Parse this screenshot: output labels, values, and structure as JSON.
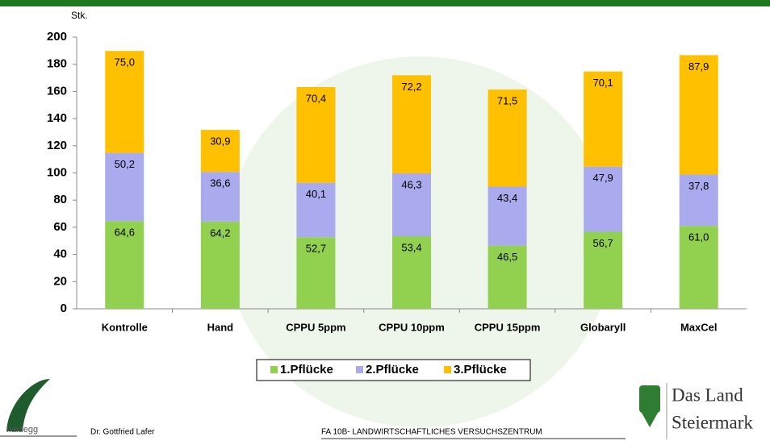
{
  "chart_data": {
    "type": "stacked_bar",
    "y_label": "Stk.",
    "categories": [
      "Kontrolle",
      "Hand",
      "CPPU 5ppm",
      "CPPU 10ppm",
      "CPPU 15ppm",
      "Globaryll",
      "MaxCel"
    ],
    "series": [
      {
        "name": "1.Pflücke",
        "color": "#92d050",
        "values": [
          64.6,
          64.2,
          52.7,
          53.4,
          46.5,
          56.7,
          61.0
        ],
        "value_labels": [
          "64,6",
          "64,2",
          "52,7",
          "53,4",
          "46,5",
          "56,7",
          "61,0"
        ]
      },
      {
        "name": "2.Pflücke",
        "color": "#aaaaee",
        "values": [
          50.2,
          36.6,
          40.1,
          46.3,
          43.4,
          47.9,
          37.8
        ],
        "value_labels": [
          "50,2",
          "36,6",
          "40,1",
          "46,3",
          "43,4",
          "47,9",
          "37,8"
        ]
      },
      {
        "name": "3.Pflücke",
        "color": "#ffc000",
        "values": [
          75.0,
          30.9,
          70.4,
          72.2,
          71.5,
          70.1,
          87.9
        ],
        "value_labels": [
          "75,0",
          "30,9",
          "70,4",
          "72,2",
          "71,5",
          "70,1",
          "87,9"
        ]
      }
    ],
    "ylim": [
      0,
      200
    ],
    "yticks": [
      0,
      20,
      40,
      60,
      80,
      100,
      120,
      140,
      160,
      180,
      200
    ],
    "legend": "bottom"
  },
  "footer": {
    "logo": "haidegg",
    "author": "Dr. Gottfried Lafer",
    "institute": "FA 10B- LANDWIRTSCHAFTLICHES VERSUCHSZENTRUM",
    "brand_line1": "Das Land",
    "brand_line2": "Steiermark"
  }
}
